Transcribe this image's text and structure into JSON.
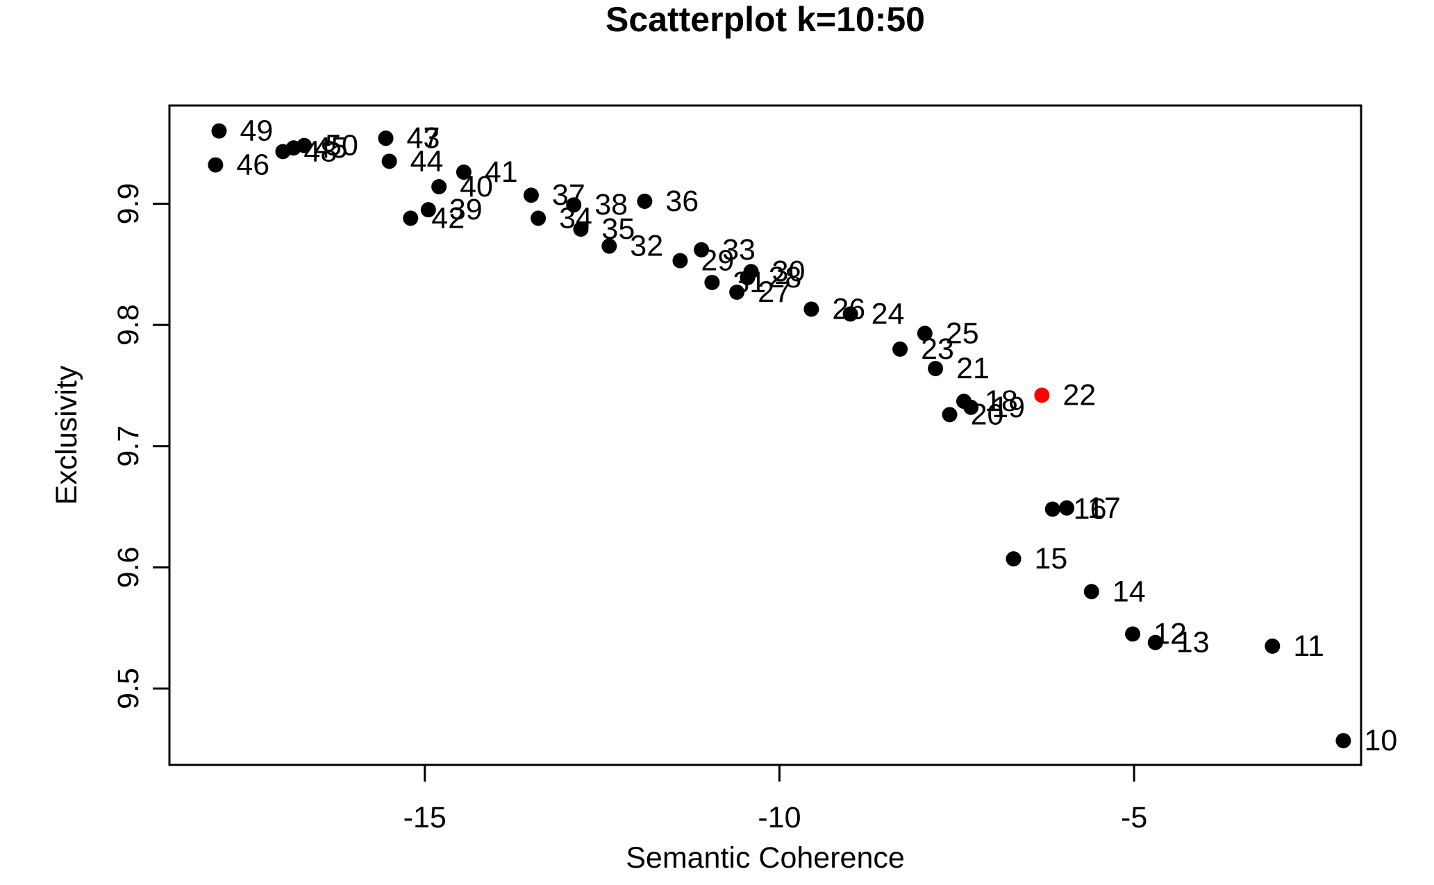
{
  "chart_data": {
    "type": "scatter",
    "title": "Scatterplot k=10:50",
    "xlabel": "Semantic Coherence",
    "ylabel": "Exclusivity",
    "xlim": [
      -18.6,
      -1.8
    ],
    "ylim": [
      9.437,
      9.981
    ],
    "xticks": [
      -15,
      -10,
      -5
    ],
    "xtick_labels": [
      "-15",
      "-10",
      "-5"
    ],
    "yticks": [
      9.5,
      9.6,
      9.7,
      9.8,
      9.9
    ],
    "ytick_labels": [
      "9.5",
      "9.6",
      "9.7",
      "9.8",
      "9.9"
    ],
    "grid": false,
    "point_color": "#000000",
    "highlight_color": "#ff0000",
    "points": [
      {
        "label": "10",
        "x": -2.05,
        "y": 9.457
      },
      {
        "label": "11",
        "x": -3.05,
        "y": 9.535
      },
      {
        "label": "12",
        "x": -5.02,
        "y": 9.545
      },
      {
        "label": "13",
        "x": -4.7,
        "y": 9.538
      },
      {
        "label": "14",
        "x": -5.6,
        "y": 9.58
      },
      {
        "label": "15",
        "x": -6.7,
        "y": 9.607
      },
      {
        "label": "16",
        "x": -6.15,
        "y": 9.648
      },
      {
        "label": "17",
        "x": -5.95,
        "y": 9.649
      },
      {
        "label": "18",
        "x": -7.4,
        "y": 9.737
      },
      {
        "label": "19",
        "x": -7.3,
        "y": 9.732
      },
      {
        "label": "20",
        "x": -7.6,
        "y": 9.726
      },
      {
        "label": "21",
        "x": -7.8,
        "y": 9.764
      },
      {
        "label": "22",
        "x": -6.3,
        "y": 9.742,
        "highlight": true
      },
      {
        "label": "23",
        "x": -8.3,
        "y": 9.78
      },
      {
        "label": "24",
        "x": -9.0,
        "y": 9.809
      },
      {
        "label": "25",
        "x": -7.95,
        "y": 9.793
      },
      {
        "label": "26",
        "x": -9.55,
        "y": 9.813
      },
      {
        "label": "27",
        "x": -10.6,
        "y": 9.827
      },
      {
        "label": "28",
        "x": -10.45,
        "y": 9.839
      },
      {
        "label": "29",
        "x": -11.4,
        "y": 9.853
      },
      {
        "label": "30",
        "x": -10.4,
        "y": 9.844
      },
      {
        "label": "31",
        "x": -10.95,
        "y": 9.835
      },
      {
        "label": "32",
        "x": -12.4,
        "y": 9.865
      },
      {
        "label": "33",
        "x": -11.1,
        "y": 9.862
      },
      {
        "label": "34",
        "x": -13.4,
        "y": 9.888
      },
      {
        "label": "35",
        "x": -12.8,
        "y": 9.879
      },
      {
        "label": "36",
        "x": -11.9,
        "y": 9.902
      },
      {
        "label": "37",
        "x": -13.5,
        "y": 9.907
      },
      {
        "label": "38",
        "x": -12.9,
        "y": 9.899
      },
      {
        "label": "39",
        "x": -14.95,
        "y": 9.895
      },
      {
        "label": "40",
        "x": -14.8,
        "y": 9.914
      },
      {
        "label": "41",
        "x": -14.45,
        "y": 9.926
      },
      {
        "label": "42",
        "x": -15.2,
        "y": 9.888
      },
      {
        "label": "43",
        "x": -15.55,
        "y": 9.954
      },
      {
        "label": "44",
        "x": -15.5,
        "y": 9.935
      },
      {
        "label": "45",
        "x": -16.85,
        "y": 9.946
      },
      {
        "label": "46",
        "x": -17.95,
        "y": 9.932
      },
      {
        "label": "47",
        "x": -15.55,
        "y": 9.954
      },
      {
        "label": "48",
        "x": -17.0,
        "y": 9.943
      },
      {
        "label": "49",
        "x": -17.9,
        "y": 9.96
      },
      {
        "label": "50",
        "x": -16.7,
        "y": 9.948
      }
    ]
  }
}
